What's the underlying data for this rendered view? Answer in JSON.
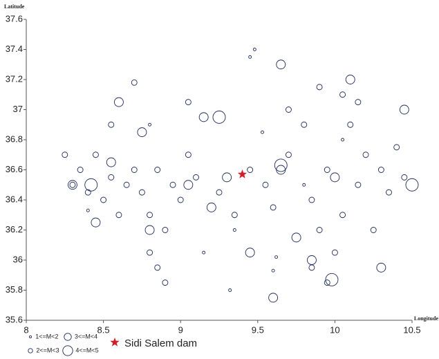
{
  "chart_data": {
    "type": "scatter",
    "x_label": "Longitude",
    "y_label": "Latitude",
    "xlim": [
      8,
      10.5
    ],
    "xticks": [
      8,
      8.5,
      9,
      9.5,
      10,
      10.5
    ],
    "ylim": [
      35.6,
      37.6
    ],
    "yticks": [
      35.6,
      35.8,
      36,
      36.2,
      36.4,
      36.6,
      36.8,
      37,
      37.2,
      37.4,
      37.6
    ],
    "series": [
      {
        "name": "1<=M<2",
        "color": "#1f2a5a",
        "x": [
          9.48,
          9.45,
          9.53,
          9.35,
          9.62,
          9.6,
          9.15,
          9.32,
          8.4,
          9.8,
          10.05,
          8.8
        ],
        "y": [
          37.4,
          37.35,
          36.85,
          36.2,
          36.02,
          35.93,
          36.05,
          35.8,
          36.33,
          36.5,
          36.8,
          36.9
        ]
      },
      {
        "name": "2<=M<3",
        "color": "#1f2a5a",
        "x": [
          8.3,
          8.35,
          8.4,
          8.45,
          8.5,
          8.55,
          8.6,
          8.65,
          8.7,
          8.75,
          8.8,
          8.85,
          8.9,
          8.95,
          9.0,
          9.05,
          9.1,
          8.85,
          8.9,
          8.8,
          9.25,
          9.35,
          9.45,
          9.55,
          9.6,
          9.7,
          9.8,
          9.85,
          9.9,
          9.95,
          10.0,
          10.05,
          10.1,
          10.15,
          10.2,
          10.25,
          10.3,
          10.35,
          10.4,
          10.45,
          9.9,
          10.05,
          10.15,
          9.7,
          9.85,
          9.95,
          8.25,
          8.7,
          9.05,
          8.55
        ],
        "y": [
          36.5,
          36.6,
          36.45,
          36.7,
          36.4,
          36.55,
          36.3,
          36.5,
          36.6,
          36.45,
          36.3,
          36.6,
          36.2,
          36.5,
          36.4,
          36.7,
          36.55,
          35.95,
          35.85,
          36.05,
          36.45,
          36.3,
          36.6,
          36.5,
          36.35,
          36.7,
          36.9,
          36.4,
          36.2,
          36.6,
          36.05,
          36.3,
          36.9,
          36.5,
          36.7,
          36.2,
          36.6,
          36.45,
          36.75,
          36.55,
          37.15,
          37.1,
          37.05,
          37.0,
          35.95,
          35.85,
          36.7,
          37.18,
          37.05,
          36.9
        ]
      },
      {
        "name": "3<=M<4",
        "color": "#1f2a5a",
        "x": [
          8.6,
          9.15,
          9.65,
          9.75,
          9.65,
          8.75,
          8.3,
          8.55,
          9.3,
          10.45,
          10.0,
          9.85,
          10.3,
          8.8,
          9.2,
          9.45,
          9.6,
          10.1,
          9.05,
          8.45
        ],
        "y": [
          37.05,
          36.95,
          37.3,
          36.15,
          36.6,
          36.85,
          36.5,
          36.65,
          36.55,
          37.0,
          36.55,
          36.0,
          35.95,
          36.2,
          36.35,
          36.05,
          35.75,
          37.2,
          36.5,
          36.25
        ]
      },
      {
        "name": "4<=M<5",
        "color": "#1f2a5a",
        "x": [
          9.65,
          10.5,
          9.25,
          8.42,
          9.98
        ],
        "y": [
          36.63,
          36.5,
          36.95,
          36.5,
          35.87
        ]
      }
    ],
    "annotation": {
      "label": "Sidi Salem dam",
      "x": 9.4,
      "y": 36.57,
      "color": "#d0202a"
    }
  }
}
